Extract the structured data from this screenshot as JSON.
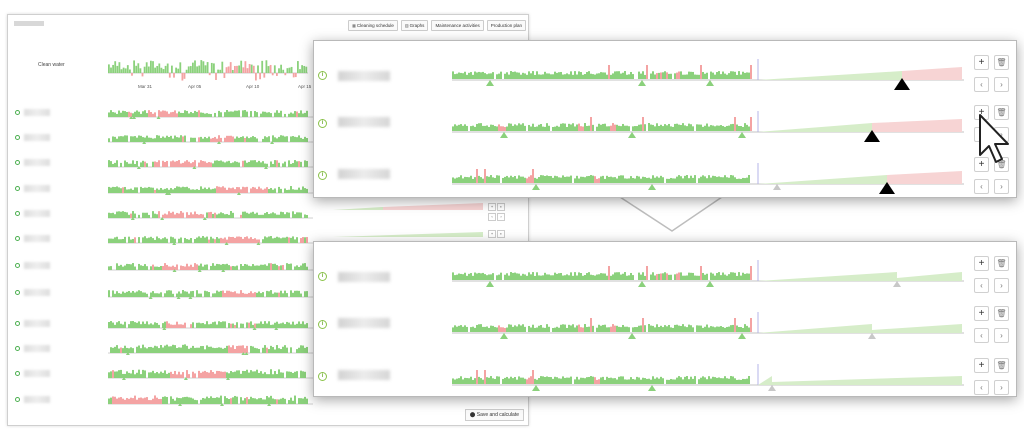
{
  "background_window": {
    "toolbar": [
      {
        "icon": "calendar-icon",
        "label": "Cleaning schedule"
      },
      {
        "icon": "chart-icon",
        "label": "Graphs"
      },
      {
        "icon": "",
        "label": "Maintenance activities"
      },
      {
        "icon": "",
        "label": "Production plan"
      }
    ],
    "clean_water_label": "Clean water",
    "x_ticks": [
      "Mar 31",
      "Apr 05",
      "Apr 10",
      "Apr 15"
    ],
    "save_label": "Save and calculate",
    "row_count": 12
  },
  "popup_top": {
    "rows": [
      {
        "add_label": "+",
        "delete_label": "🗑",
        "prev_label": "‹",
        "next_label": "›"
      },
      {
        "add_label": "+",
        "delete_label": "🗑",
        "prev_label": "‹",
        "next_label": "›"
      },
      {
        "add_label": "+",
        "delete_label": "🗑",
        "prev_label": "‹",
        "next_label": "›"
      }
    ]
  },
  "popup_bottom": {
    "rows": [
      {
        "add_label": "+",
        "delete_label": "🗑",
        "prev_label": "‹",
        "next_label": "›"
      },
      {
        "add_label": "+",
        "delete_label": "🗑",
        "prev_label": "‹",
        "next_label": "›"
      },
      {
        "add_label": "+",
        "delete_label": "🗑",
        "prev_label": "‹",
        "next_label": "›"
      }
    ]
  },
  "colors": {
    "good": "#8bd17c",
    "bad": "#f4a3a3",
    "forecast_good": "#d6edc9",
    "forecast_bad": "#f7d4d4",
    "marker_active": "#000000",
    "marker_past": "#8bd17c",
    "marker_inactive": "#c8c8c8",
    "info_icon": "#8bc34a"
  }
}
